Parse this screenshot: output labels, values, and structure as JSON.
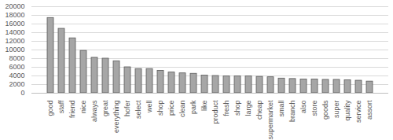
{
  "chart_data": {
    "type": "bar",
    "categories": [
      "good",
      "staff",
      "friend",
      "nice",
      "always",
      "great",
      "everything",
      "hofer",
      "select",
      "well",
      "shop",
      "price",
      "clean",
      "park",
      "like",
      "product",
      "fresh",
      "shop",
      "large",
      "cheap",
      "supermarket",
      "small",
      "branch",
      "also",
      "store",
      "goods",
      "super",
      "quality",
      "service",
      "assort"
    ],
    "values": [
      17400,
      14900,
      12700,
      9800,
      8200,
      8000,
      7400,
      6000,
      5600,
      5600,
      5200,
      4800,
      4600,
      4500,
      4100,
      4000,
      3900,
      3900,
      3900,
      3800,
      3700,
      3400,
      3300,
      3200,
      3200,
      3100,
      3100,
      3000,
      2900,
      2700
    ],
    "color": "#a6a6a6",
    "ylim": [
      0,
      20000
    ],
    "yticks": [
      0,
      2000,
      4000,
      6000,
      8000,
      10000,
      12000,
      14000,
      16000,
      18000,
      20000
    ],
    "grid": true
  }
}
